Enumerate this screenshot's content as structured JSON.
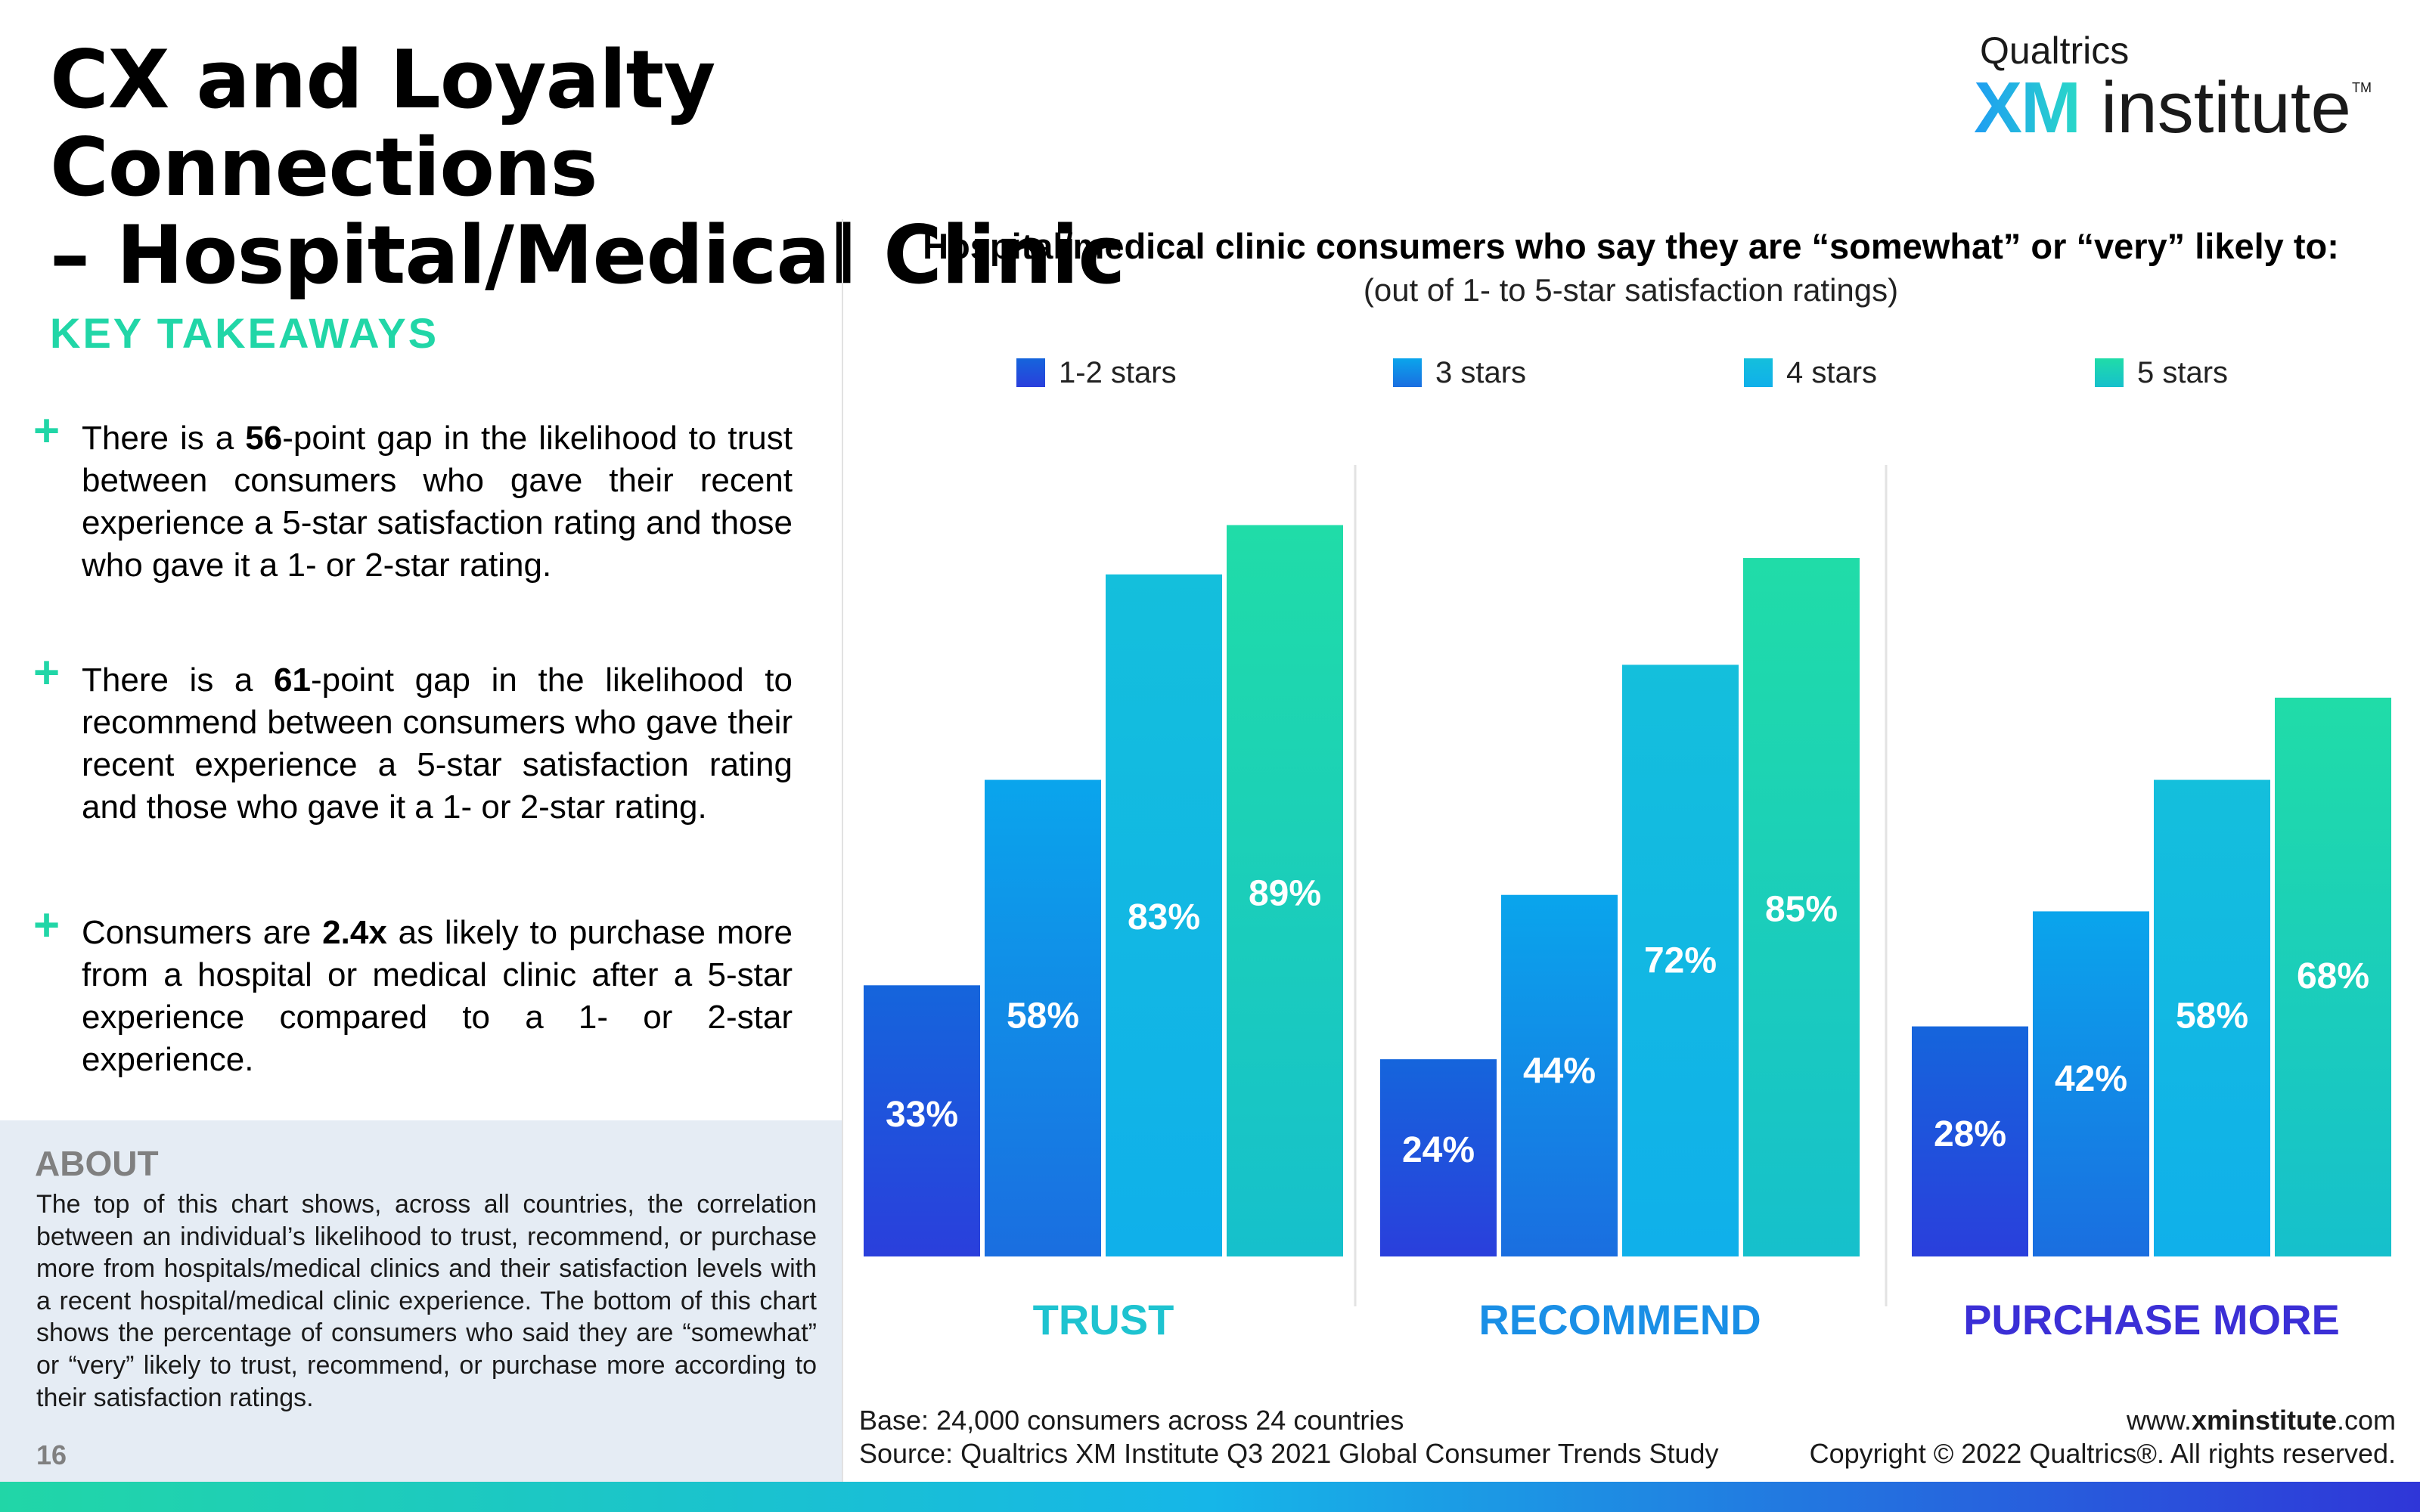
{
  "page": {
    "title_line1": "CX and Loyalty Connections",
    "title_line2": "– Hospital/Medical Clinic",
    "page_number": "16"
  },
  "logo": {
    "brand": "Qualtrics",
    "xm": "XM",
    "institute": "institute",
    "tm": "TM"
  },
  "takeaways": {
    "heading": "KEY TAKEAWAYS",
    "items": [
      {
        "pre": "There is a ",
        "bold": "56",
        "post": "-point gap in the likelihood to trust between consumers who gave their recent experience a 5-star satisfaction rating and those who gave it a 1- or 2-star rating."
      },
      {
        "pre": "There is a ",
        "bold": "61",
        "post": "-point gap in the likelihood to recommend between consumers who gave their recent experience a 5-star satisfaction rating and those who gave it a 1- or 2-star rating."
      },
      {
        "pre": "Consumers are ",
        "bold": "2.4x",
        "post": " as likely to purchase more from a hospital or medical clinic after a 5-star experience compared to a 1- or 2-star experience."
      }
    ]
  },
  "about": {
    "heading": "ABOUT",
    "text": "The top of this chart shows, across all countries, the correlation between an individual’s likelihood to trust, recommend, or purchase more from hospitals/medical clinics and their satisfaction levels with a recent hospital/medical clinic experience. The bottom of this chart shows the percentage of consumers who said they are “somewhat” or “very” likely to trust, recommend, or purchase more according to their satisfaction ratings."
  },
  "footer": {
    "base": "Base: 24,000 consumers across 24 countries",
    "source": "Source: Qualtrics XM Institute Q3 2021 Global Consumer Trends Study",
    "url_pre": "www.",
    "url_bold": "xminstitute",
    "url_post": ".com",
    "copyright": "Copyright © 2022 Qualtrics®. All rights reserved."
  },
  "colors": {
    "accent_green": "#21d6a7",
    "trust_label": "#1ec3d0",
    "recommend_label": "#1a8fe6",
    "purchase_label": "#3b2fd6"
  },
  "chart_data": {
    "type": "bar",
    "title": "Hospital/medical clinic consumers who say they are “somewhat” or “very” likely to:",
    "subtitle": "(out of 1- to 5-star satisfaction ratings)",
    "categories": [
      "TRUST",
      "RECOMMEND",
      "PURCHASE MORE"
    ],
    "series": [
      {
        "name": "1-2 stars",
        "values": [
          33,
          24,
          28
        ],
        "color_top": "#1565dc",
        "color_bottom": "#2a3fdc"
      },
      {
        "name": "3 stars",
        "values": [
          58,
          44,
          42
        ],
        "color_top": "#0aa5ec",
        "color_bottom": "#1a6ee0"
      },
      {
        "name": "4 stars",
        "values": [
          83,
          72,
          58
        ],
        "color_top": "#14bfdc",
        "color_bottom": "#10b0ea"
      },
      {
        "name": "5 stars",
        "values": [
          89,
          85,
          68
        ],
        "color_top": "#20dca8",
        "color_bottom": "#16c0cc"
      }
    ],
    "value_suffix": "%",
    "ylim": [
      0,
      100
    ],
    "legend": "top",
    "grid": false
  }
}
